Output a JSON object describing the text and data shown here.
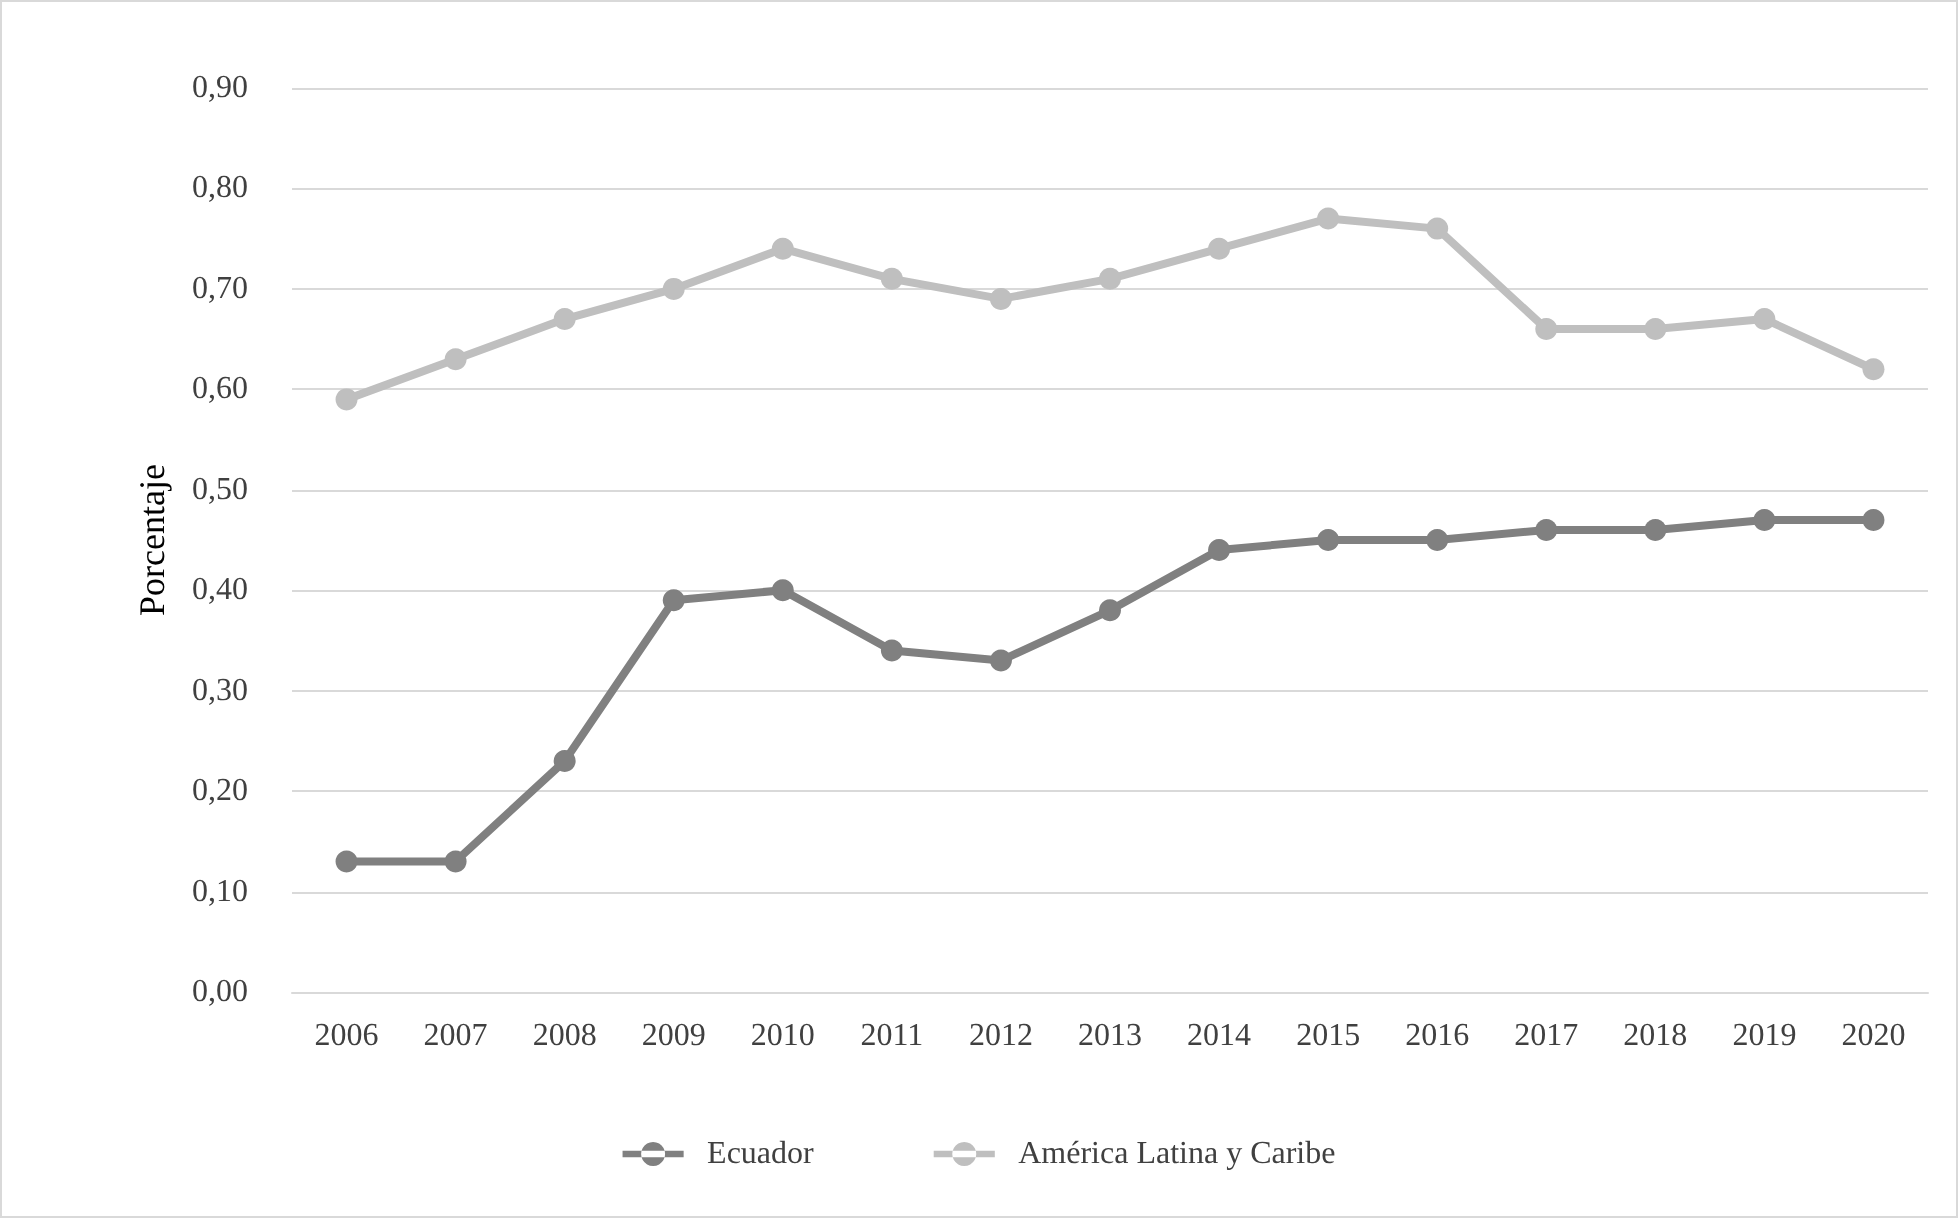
{
  "chart_data": {
    "type": "line",
    "ylabel": "Porcentaje",
    "categories": [
      "2006",
      "2007",
      "2008",
      "2009",
      "2010",
      "2011",
      "2012",
      "2013",
      "2014",
      "2015",
      "2016",
      "2017",
      "2018",
      "2019",
      "2020"
    ],
    "series": [
      {
        "name": "Ecuador",
        "color": "#808080",
        "values": [
          0.13,
          0.13,
          0.23,
          0.39,
          0.4,
          0.34,
          0.33,
          0.38,
          0.44,
          0.45,
          0.45,
          0.46,
          0.46,
          0.47,
          0.47
        ]
      },
      {
        "name": "América Latina y Caribe",
        "color": "#bfbfbf",
        "values": [
          0.59,
          0.63,
          0.67,
          0.7,
          0.74,
          0.71,
          0.69,
          0.71,
          0.74,
          0.77,
          0.76,
          0.66,
          0.66,
          0.67,
          0.62
        ]
      }
    ],
    "ylim": [
      0,
      0.9
    ],
    "yticks": [
      {
        "value": 0,
        "label": "0,00"
      },
      {
        "value": 0.1,
        "label": "0,10"
      },
      {
        "value": 0.2,
        "label": "0,20"
      },
      {
        "value": 0.3,
        "label": "0,30"
      },
      {
        "value": 0.4,
        "label": "0,40"
      },
      {
        "value": 0.5,
        "label": "0,50"
      },
      {
        "value": 0.6,
        "label": "0,60"
      },
      {
        "value": 0.7,
        "label": "0,70"
      },
      {
        "value": 0.8,
        "label": "0,80"
      },
      {
        "value": 0.9,
        "label": "0,90"
      }
    ],
    "grid": "y",
    "legend": "bottom",
    "marker": "circle",
    "line_style": "solid"
  }
}
